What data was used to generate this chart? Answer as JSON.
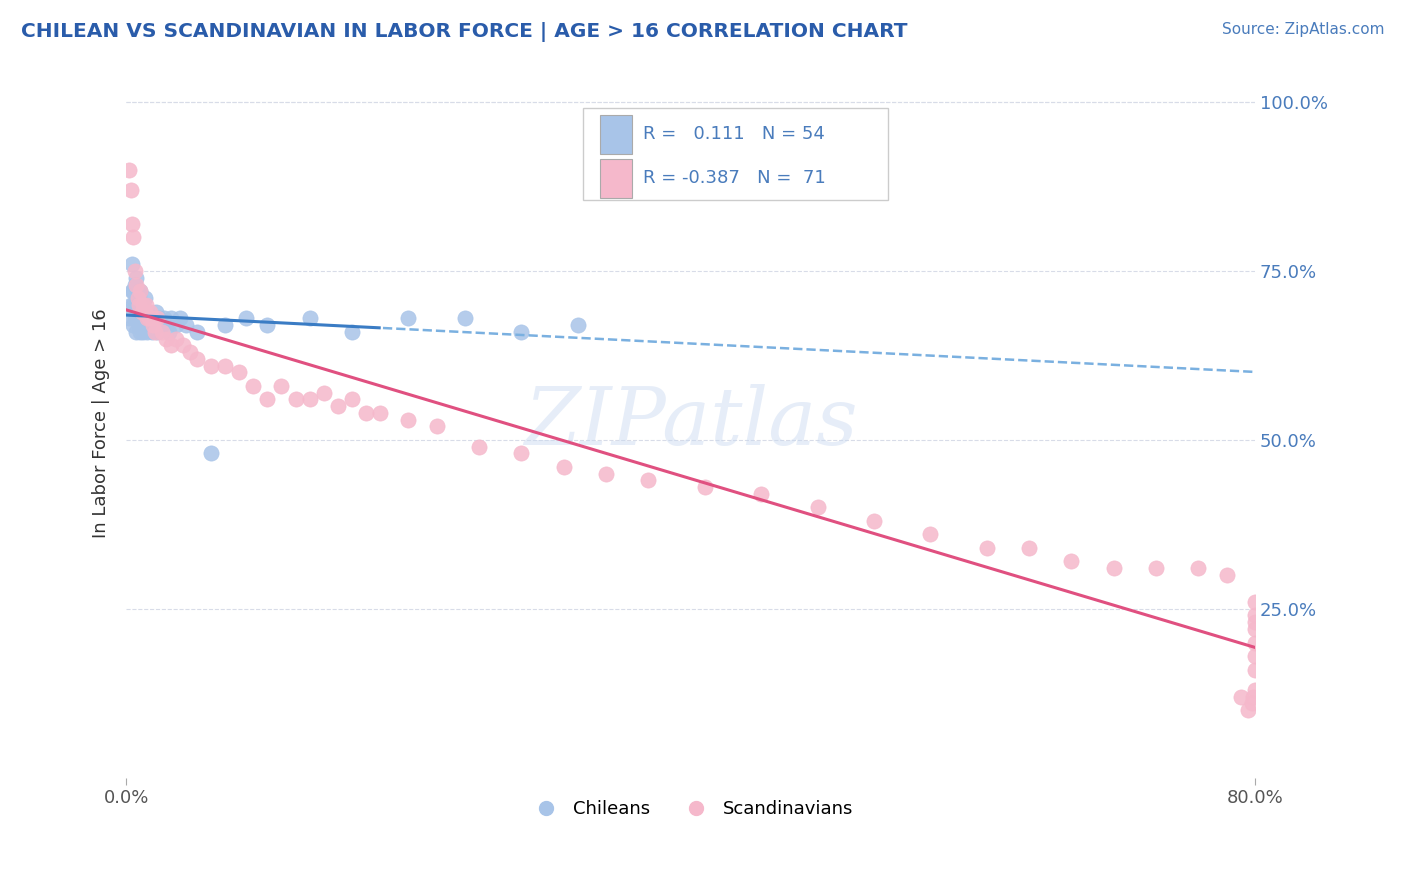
{
  "title": "CHILEAN VS SCANDINAVIAN IN LABOR FORCE | AGE > 16 CORRELATION CHART",
  "source_text": "Source: ZipAtlas.com",
  "ylabel_left": "In Labor Force | Age > 16",
  "x_min": 0.0,
  "x_max": 0.8,
  "y_min": 0.0,
  "y_max": 1.05,
  "x_tick_labels": [
    "0.0%",
    "80.0%"
  ],
  "x_tick_positions": [
    0.0,
    0.8
  ],
  "y_tick_labels_right": [
    "25.0%",
    "50.0%",
    "75.0%",
    "100.0%"
  ],
  "y_tick_positions_right": [
    0.25,
    0.5,
    0.75,
    1.0
  ],
  "legend_color1": "#a8c4e8",
  "legend_color2": "#f5b8cb",
  "dot_color_blue": "#a8c4e8",
  "dot_color_pink": "#f5b8cb",
  "line_color_blue_solid": "#3a7cc4",
  "line_color_blue_dash": "#7ab0e0",
  "line_color_pink": "#e05080",
  "grid_color": "#d8dce8",
  "background_color": "#ffffff",
  "title_color": "#2a5caa",
  "source_color": "#4a7cbc",
  "legend_label1": "Chileans",
  "legend_label2": "Scandinavians",
  "watermark": "ZIPatlas",
  "chilean_x": [
    0.002,
    0.003,
    0.004,
    0.004,
    0.005,
    0.005,
    0.005,
    0.006,
    0.006,
    0.007,
    0.007,
    0.007,
    0.008,
    0.008,
    0.009,
    0.009,
    0.01,
    0.01,
    0.01,
    0.011,
    0.011,
    0.012,
    0.012,
    0.013,
    0.013,
    0.014,
    0.015,
    0.015,
    0.016,
    0.017,
    0.018,
    0.019,
    0.02,
    0.021,
    0.022,
    0.023,
    0.025,
    0.027,
    0.03,
    0.032,
    0.035,
    0.038,
    0.042,
    0.05,
    0.06,
    0.07,
    0.085,
    0.1,
    0.13,
    0.16,
    0.2,
    0.24,
    0.28,
    0.32
  ],
  "chilean_y": [
    0.68,
    0.7,
    0.72,
    0.76,
    0.67,
    0.7,
    0.72,
    0.68,
    0.73,
    0.66,
    0.7,
    0.74,
    0.69,
    0.72,
    0.67,
    0.71,
    0.66,
    0.69,
    0.72,
    0.67,
    0.7,
    0.66,
    0.69,
    0.67,
    0.71,
    0.68,
    0.66,
    0.69,
    0.67,
    0.68,
    0.66,
    0.68,
    0.67,
    0.69,
    0.66,
    0.68,
    0.67,
    0.68,
    0.66,
    0.68,
    0.67,
    0.68,
    0.67,
    0.66,
    0.48,
    0.67,
    0.68,
    0.67,
    0.68,
    0.66,
    0.68,
    0.68,
    0.66,
    0.67
  ],
  "scandinavian_x": [
    0.002,
    0.003,
    0.004,
    0.005,
    0.006,
    0.007,
    0.008,
    0.009,
    0.01,
    0.011,
    0.012,
    0.013,
    0.014,
    0.015,
    0.016,
    0.017,
    0.018,
    0.019,
    0.02,
    0.022,
    0.025,
    0.028,
    0.032,
    0.035,
    0.04,
    0.045,
    0.05,
    0.06,
    0.07,
    0.08,
    0.09,
    0.1,
    0.11,
    0.12,
    0.13,
    0.14,
    0.15,
    0.16,
    0.17,
    0.18,
    0.2,
    0.22,
    0.25,
    0.28,
    0.31,
    0.34,
    0.37,
    0.41,
    0.45,
    0.49,
    0.53,
    0.57,
    0.61,
    0.64,
    0.67,
    0.7,
    0.73,
    0.76,
    0.78,
    0.79,
    0.795,
    0.798,
    0.799,
    0.8,
    0.8,
    0.8,
    0.8,
    0.8,
    0.8,
    0.8,
    0.8
  ],
  "scandinavian_y": [
    0.9,
    0.87,
    0.82,
    0.8,
    0.75,
    0.73,
    0.71,
    0.7,
    0.72,
    0.69,
    0.7,
    0.69,
    0.7,
    0.68,
    0.68,
    0.69,
    0.68,
    0.67,
    0.66,
    0.68,
    0.66,
    0.65,
    0.64,
    0.65,
    0.64,
    0.63,
    0.62,
    0.61,
    0.61,
    0.6,
    0.58,
    0.56,
    0.58,
    0.56,
    0.56,
    0.57,
    0.55,
    0.56,
    0.54,
    0.54,
    0.53,
    0.52,
    0.49,
    0.48,
    0.46,
    0.45,
    0.44,
    0.43,
    0.42,
    0.4,
    0.38,
    0.36,
    0.34,
    0.34,
    0.32,
    0.31,
    0.31,
    0.31,
    0.3,
    0.12,
    0.1,
    0.11,
    0.12,
    0.13,
    0.16,
    0.18,
    0.2,
    0.22,
    0.23,
    0.24,
    0.26
  ]
}
